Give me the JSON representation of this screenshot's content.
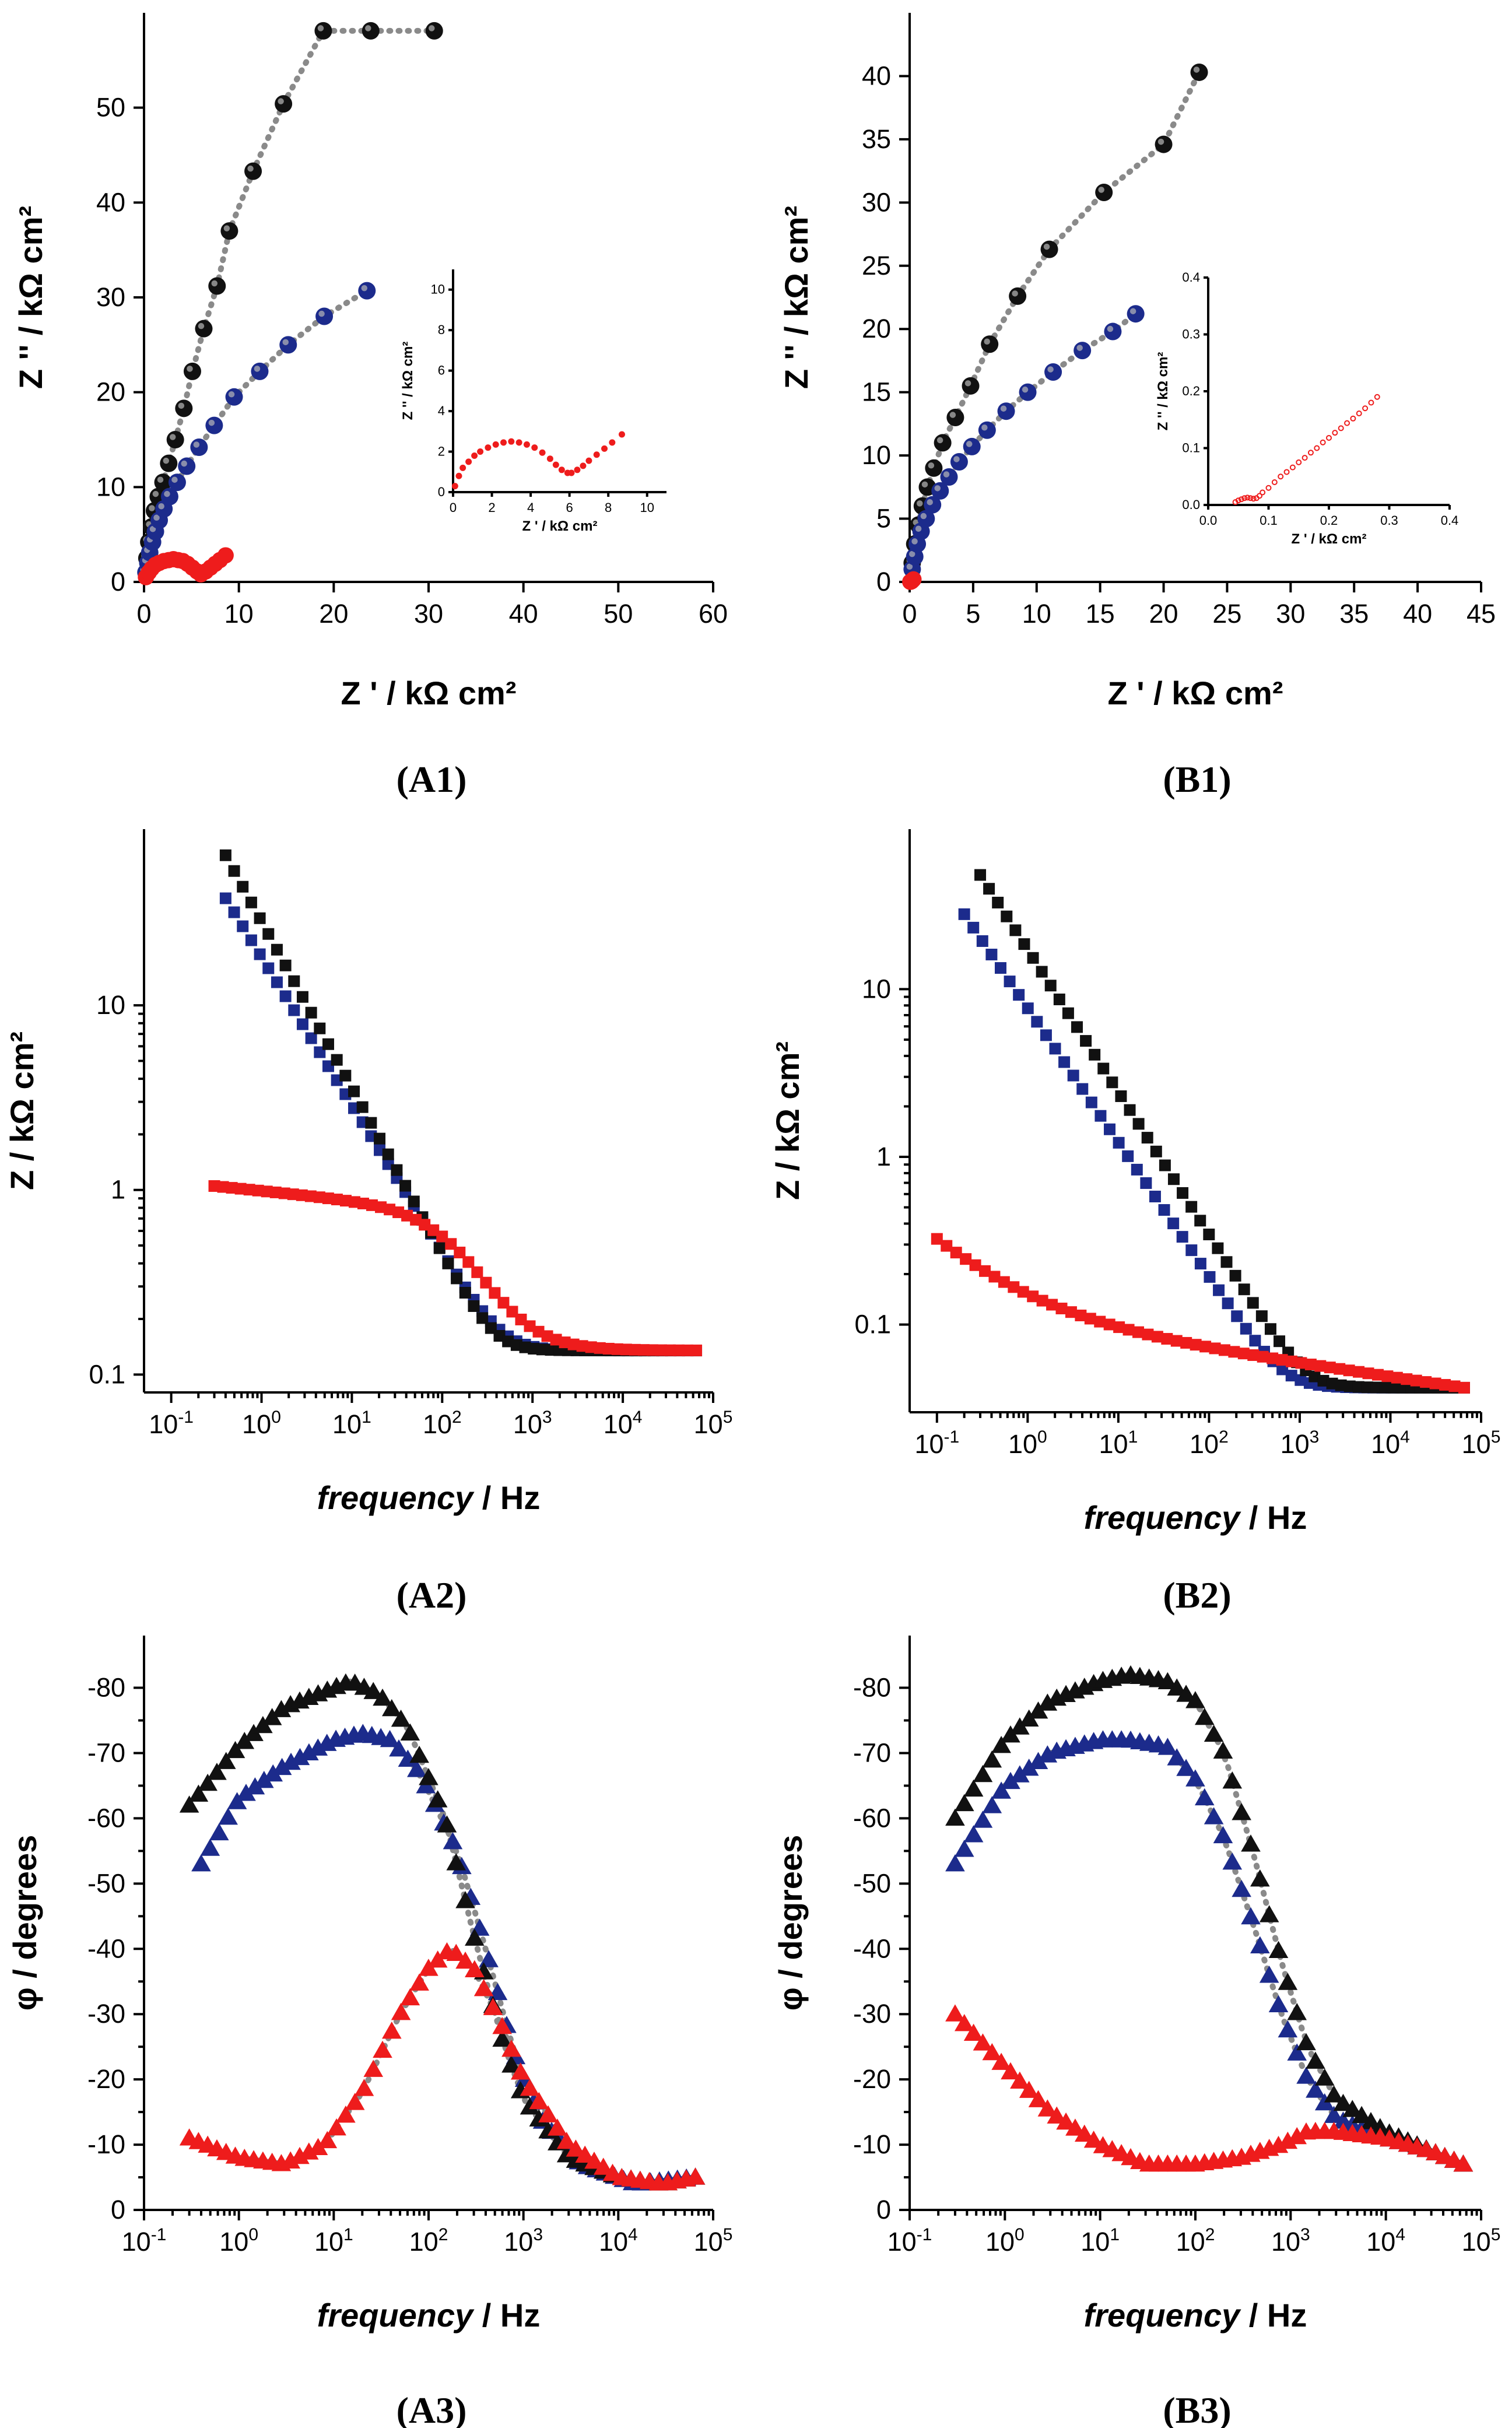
{
  "panels": {
    "A1": "(A1)",
    "B1": "(B1)",
    "A2": "(A2)",
    "B2": "(B2)",
    "A3": "(A3)",
    "B3": "(B3)"
  },
  "labels": {
    "z_real": "Z ' / kΩ cm²",
    "z_imag": "Z '' / kΩ cm²",
    "z_mod": "Z / kΩ cm²",
    "phase": "φ / degrees",
    "frequency_italic": "frequency",
    "frequency_unit": " / Hz"
  },
  "colors": {
    "black": "#111111",
    "blue": "#1c2b8c",
    "red": "#ee1c1c",
    "fit": "#8a8a8a"
  },
  "chart_data": [
    {
      "id": "A1",
      "type": "scatter",
      "xlabel": "Z ' / kΩ cm²",
      "ylabel": "Z '' / kΩ cm²",
      "xlim": [
        0,
        60
      ],
      "ylim": [
        0,
        60
      ],
      "xticks": [
        0,
        10,
        20,
        30,
        40,
        50,
        60
      ],
      "yticks": [
        0,
        10,
        20,
        30,
        40,
        50
      ],
      "series": [
        {
          "name": "black",
          "x": [
            0.3,
            0.5,
            0.8,
            1.1,
            1.5,
            2.0,
            2.6,
            3.3,
            4.2,
            5.1,
            6.3,
            7.7,
            9.0,
            11.5,
            14.7,
            18.9,
            23.9,
            30.6
          ],
          "y": [
            2.5,
            4.2,
            5.8,
            7.5,
            9.0,
            10.5,
            12.5,
            15.0,
            18.3,
            22.2,
            26.7,
            31.2,
            37.0,
            43.3,
            50.4,
            58.1,
            58.1,
            58.1
          ]
        },
        {
          "name": "blue",
          "x": [
            0.2,
            0.4,
            0.6,
            0.9,
            1.2,
            1.6,
            2.1,
            2.7,
            3.5,
            4.5,
            5.8,
            7.4,
            9.5,
            12.2,
            15.2,
            19.0,
            23.5
          ],
          "y": [
            1.0,
            2.0,
            3.1,
            4.2,
            5.3,
            6.5,
            7.7,
            9.0,
            10.5,
            12.2,
            14.2,
            16.5,
            19.5,
            22.2,
            25.0,
            28.0,
            30.7
          ]
        },
        {
          "name": "red",
          "x": [
            0.2,
            0.5,
            0.8,
            1.2,
            1.6,
            2.1,
            2.6,
            3.1,
            3.6,
            4.1,
            4.6,
            5.1,
            5.6,
            6.0,
            6.5,
            7.0,
            7.5,
            8.0,
            8.6
          ],
          "y": [
            0.5,
            1.0,
            1.4,
            1.8,
            2.0,
            2.2,
            2.3,
            2.4,
            2.3,
            2.2,
            1.9,
            1.5,
            1.1,
            0.8,
            1.1,
            1.5,
            1.9,
            2.3,
            2.8
          ]
        }
      ],
      "inset": {
        "xlabel": "Z ' / kΩ cm²",
        "ylabel": "Z '' / kΩ cm²",
        "xlim": [
          0,
          11
        ],
        "ylim": [
          0,
          11
        ],
        "xticks": [
          0,
          2,
          4,
          6,
          8,
          10
        ],
        "yticks": [
          0,
          2,
          4,
          6,
          8,
          10
        ],
        "series": [
          {
            "name": "red",
            "x": [
              0.1,
              0.3,
              0.5,
              0.8,
              1.1,
              1.4,
              1.8,
              2.2,
              2.6,
              3.0,
              3.4,
              3.8,
              4.2,
              4.6,
              5.0,
              5.3,
              5.6,
              5.9,
              6.1,
              6.4,
              6.7,
              7.0,
              7.4,
              7.8,
              8.2,
              8.7
            ],
            "y": [
              0.3,
              0.8,
              1.2,
              1.5,
              1.8,
              2.0,
              2.2,
              2.35,
              2.45,
              2.5,
              2.45,
              2.35,
              2.2,
              1.95,
              1.65,
              1.35,
              1.1,
              0.95,
              0.95,
              1.1,
              1.3,
              1.55,
              1.85,
              2.15,
              2.45,
              2.85
            ]
          }
        ]
      }
    },
    {
      "id": "B1",
      "type": "scatter",
      "xlabel": "Z ' / kΩ cm²",
      "ylabel": "Z '' / kΩ cm²",
      "xlim": [
        0,
        45
      ],
      "ylim": [
        0,
        45
      ],
      "xticks": [
        0,
        5,
        10,
        15,
        20,
        25,
        30,
        35,
        40,
        45
      ],
      "yticks": [
        0,
        5,
        10,
        15,
        20,
        25,
        30,
        35,
        40
      ],
      "series": [
        {
          "name": "black",
          "x": [
            0.2,
            0.4,
            0.7,
            1.0,
            1.4,
            1.9,
            2.6,
            3.6,
            4.8,
            6.3,
            8.5,
            11.0,
            15.3,
            20.0,
            22.8
          ],
          "y": [
            1.5,
            3.0,
            4.5,
            6.0,
            7.5,
            9.0,
            11.0,
            13.0,
            15.5,
            18.8,
            22.6,
            26.3,
            30.8,
            34.6,
            40.3
          ]
        },
        {
          "name": "blue",
          "x": [
            0.2,
            0.4,
            0.6,
            0.9,
            1.3,
            1.8,
            2.4,
            3.1,
            3.9,
            4.9,
            6.1,
            7.6,
            9.3,
            11.3,
            13.6,
            16.0,
            17.8
          ],
          "y": [
            1.0,
            2.0,
            3.0,
            4.0,
            5.0,
            6.1,
            7.2,
            8.3,
            9.5,
            10.7,
            12.0,
            13.5,
            15.0,
            16.6,
            18.3,
            19.8,
            21.2
          ]
        },
        {
          "name": "red",
          "x": [
            0.05,
            0.08,
            0.1,
            0.15,
            0.2,
            0.25,
            0.3
          ],
          "y": [
            0.01,
            0.02,
            0.03,
            0.05,
            0.1,
            0.15,
            0.2
          ]
        }
      ],
      "inset": {
        "xlabel": "Z ' / kΩ cm²",
        "ylabel": "Z '' / kΩ cm²",
        "xlim": [
          0,
          0.4
        ],
        "ylim": [
          0,
          0.4
        ],
        "xticks": [
          0.0,
          0.1,
          0.2,
          0.3,
          0.4
        ],
        "yticks": [
          0.0,
          0.1,
          0.2,
          0.3,
          0.4
        ],
        "xticklabels": [
          "0.0",
          "0.1",
          "0.2",
          "0.3",
          "0.4"
        ],
        "yticklabels": [
          "0.0",
          "0.1",
          "0.2",
          "0.3",
          "0.4"
        ],
        "series": [
          {
            "name": "red",
            "x": [
              0.045,
              0.05,
              0.055,
              0.06,
              0.065,
              0.07,
              0.075,
              0.08,
              0.085,
              0.09,
              0.1,
              0.11,
              0.12,
              0.13,
              0.14,
              0.15,
              0.16,
              0.17,
              0.18,
              0.19,
              0.2,
              0.21,
              0.22,
              0.23,
              0.24,
              0.25,
              0.26,
              0.27,
              0.28
            ],
            "y": [
              0.005,
              0.008,
              0.01,
              0.012,
              0.013,
              0.012,
              0.011,
              0.012,
              0.016,
              0.022,
              0.03,
              0.04,
              0.05,
              0.058,
              0.066,
              0.075,
              0.083,
              0.092,
              0.1,
              0.11,
              0.118,
              0.127,
              0.135,
              0.144,
              0.152,
              0.161,
              0.17,
              0.18,
              0.19
            ]
          }
        ]
      }
    },
    {
      "id": "A2",
      "type": "scatter",
      "xscale": "log",
      "yscale": "log",
      "xlabel": "frequency / Hz",
      "ylabel": "Z / kΩ cm²",
      "xlim": [
        0.05,
        100000
      ],
      "ylim": [
        0.08,
        90
      ],
      "xticks": [
        0.1,
        1,
        10,
        100,
        1000,
        10000,
        100000
      ],
      "xticklabels": [
        "10-1",
        "100",
        "101",
        "102",
        "103",
        "104",
        "105"
      ],
      "yticks": [
        0.1,
        1,
        10
      ],
      "yticklabels": [
        "0.1",
        "1",
        "10"
      ],
      "series": [
        {
          "name": "black",
          "fmin": 0.4,
          "fmax": 65000,
          "lowZ": 65,
          "slope": 0.9,
          "cornerF": 150,
          "highZ": 0.135
        },
        {
          "name": "blue",
          "fmin": 0.4,
          "fmax": 65000,
          "lowZ": 38,
          "slope": 0.8,
          "cornerF": 150,
          "highZ": 0.135
        },
        {
          "name": "red",
          "fmin": 0.3,
          "fmax": 65000,
          "lowZ": 1.05,
          "midZ": 0.8,
          "cornerF": 150,
          "highZ": 0.135
        }
      ]
    },
    {
      "id": "B2",
      "type": "scatter",
      "xscale": "log",
      "yscale": "log",
      "xlabel": "frequency / Hz",
      "ylabel": "Z / kΩ cm²",
      "xlim": [
        0.05,
        100000
      ],
      "ylim": [
        0.03,
        90
      ],
      "xticks": [
        0.1,
        1,
        10,
        100,
        1000,
        10000,
        100000
      ],
      "xticklabels": [
        "10-1",
        "100",
        "101",
        "102",
        "103",
        "104",
        "105"
      ],
      "yticks": [
        0.1,
        1,
        10
      ],
      "yticklabels": [
        "0.1",
        "1",
        "10"
      ],
      "series": [
        {
          "name": "black",
          "fmin": 0.3,
          "fmax": 65000,
          "lowZ": 48,
          "slope": 0.85,
          "cornerF": 700,
          "highZ": 0.042
        },
        {
          "name": "blue",
          "fmin": 0.2,
          "fmax": 65000,
          "lowZ": 28,
          "slope": 0.8,
          "cornerF": 700,
          "highZ": 0.042
        },
        {
          "name": "red",
          "fmin": 0.1,
          "fmax": 65000,
          "lowZ": 0.34,
          "midZ": 0.085,
          "cornerF": 700,
          "highZ": 0.042
        }
      ]
    },
    {
      "id": "A3",
      "type": "scatter",
      "xscale": "log",
      "xlabel": "frequency / Hz",
      "ylabel": "φ / degrees",
      "xlim": [
        0.1,
        100000
      ],
      "ylim": [
        0,
        -88
      ],
      "xticks": [
        0.1,
        1,
        10,
        100,
        1000,
        10000,
        100000
      ],
      "xticklabels": [
        "10-1",
        "100",
        "101",
        "102",
        "103",
        "104",
        "105"
      ],
      "yticks": [
        0,
        -10,
        -20,
        -30,
        -40,
        -50,
        -60,
        -70,
        -80
      ],
      "yticklabels": [
        "0",
        "-10",
        "-20",
        "-30",
        "-40",
        "-50",
        "-60",
        "-70",
        "-80"
      ],
      "series": [
        {
          "name": "black",
          "fmin": 0.3,
          "fmax": 65000,
          "points": [
            [
              0.3,
              -62
            ],
            [
              1,
              -71
            ],
            [
              3,
              -77
            ],
            [
              10,
              -80
            ],
            [
              15,
              -81
            ],
            [
              30,
              -79
            ],
            [
              60,
              -74
            ],
            [
              150,
              -60
            ],
            [
              300,
              -42
            ],
            [
              600,
              -26
            ],
            [
              1000,
              -17
            ],
            [
              3000,
              -8
            ],
            [
              10000,
              -5
            ],
            [
              30000,
              -4
            ],
            [
              65000,
              -5
            ]
          ]
        },
        {
          "name": "blue",
          "fmin": 0.4,
          "fmax": 65000,
          "points": [
            [
              0.4,
              -53
            ],
            [
              1,
              -63
            ],
            [
              3,
              -68
            ],
            [
              10,
              -72
            ],
            [
              20,
              -73
            ],
            [
              40,
              -72
            ],
            [
              80,
              -67
            ],
            [
              200,
              -55
            ],
            [
              400,
              -40
            ],
            [
              800,
              -24
            ],
            [
              1500,
              -14
            ],
            [
              4000,
              -7
            ],
            [
              15000,
              -4
            ],
            [
              65000,
              -5
            ]
          ]
        },
        {
          "name": "red",
          "fmin": 0.3,
          "fmax": 65000,
          "points": [
            [
              0.3,
              -11
            ],
            [
              1,
              -8
            ],
            [
              3,
              -7
            ],
            [
              8,
              -10
            ],
            [
              20,
              -18
            ],
            [
              50,
              -30
            ],
            [
              100,
              -37
            ],
            [
              170,
              -40
            ],
            [
              300,
              -37
            ],
            [
              600,
              -28
            ],
            [
              1000,
              -20
            ],
            [
              3000,
              -10
            ],
            [
              10000,
              -5
            ],
            [
              30000,
              -4
            ],
            [
              65000,
              -5
            ]
          ]
        }
      ]
    },
    {
      "id": "B3",
      "type": "scatter",
      "xscale": "log",
      "xlabel": "frequency / Hz",
      "ylabel": "φ / degrees",
      "xlim": [
        0.1,
        100000
      ],
      "ylim": [
        0,
        -88
      ],
      "xticks": [
        0.1,
        1,
        10,
        100,
        1000,
        10000,
        100000
      ],
      "xticklabels": [
        "10-1",
        "100",
        "101",
        "102",
        "103",
        "104",
        "105"
      ],
      "yticks": [
        0,
        -10,
        -20,
        -30,
        -40,
        -50,
        -60,
        -70,
        -80
      ],
      "yticklabels": [
        "0",
        "-10",
        "-20",
        "-30",
        "-40",
        "-50",
        "-60",
        "-70",
        "-80"
      ],
      "series": [
        {
          "name": "black",
          "fmin": 0.3,
          "fmax": 65000,
          "points": [
            [
              0.3,
              -60
            ],
            [
              1,
              -72
            ],
            [
              3,
              -78
            ],
            [
              10,
              -81
            ],
            [
              20,
              -82
            ],
            [
              50,
              -81
            ],
            [
              100,
              -78
            ],
            [
              200,
              -70
            ],
            [
              400,
              -55
            ],
            [
              800,
              -38
            ],
            [
              1500,
              -25
            ],
            [
              3000,
              -17
            ],
            [
              10000,
              -12
            ],
            [
              30000,
              -9
            ],
            [
              65000,
              -7
            ]
          ]
        },
        {
          "name": "blue",
          "fmin": 0.3,
          "fmax": 65000,
          "points": [
            [
              0.3,
              -53
            ],
            [
              1,
              -65
            ],
            [
              3,
              -70
            ],
            [
              10,
              -72
            ],
            [
              20,
              -72
            ],
            [
              50,
              -71
            ],
            [
              100,
              -66
            ],
            [
              200,
              -57
            ],
            [
              400,
              -44
            ],
            [
              800,
              -30
            ],
            [
              1500,
              -20
            ],
            [
              3000,
              -14
            ],
            [
              10000,
              -11
            ],
            [
              30000,
              -9
            ],
            [
              65000,
              -7
            ]
          ]
        },
        {
          "name": "red",
          "fmin": 0.3,
          "fmax": 65000,
          "points": [
            [
              0.3,
              -30
            ],
            [
              1,
              -22
            ],
            [
              3,
              -15
            ],
            [
              10,
              -10
            ],
            [
              30,
              -7
            ],
            [
              100,
              -7
            ],
            [
              300,
              -8
            ],
            [
              800,
              -10
            ],
            [
              1500,
              -12
            ],
            [
              3000,
              -12
            ],
            [
              10000,
              -11
            ],
            [
              30000,
              -9
            ],
            [
              65000,
              -7
            ]
          ]
        }
      ]
    }
  ]
}
